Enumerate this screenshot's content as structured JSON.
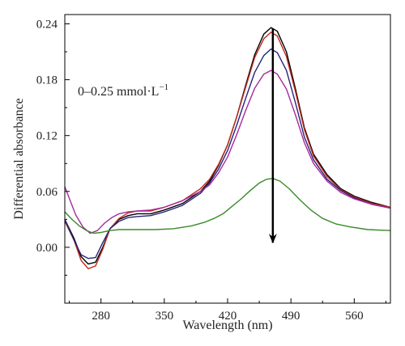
{
  "chart_data": {
    "type": "line",
    "title": "",
    "xlabel": "Wavelength (nm)",
    "ylabel": "Differential absorbance",
    "xlim": [
      240,
      600
    ],
    "ylim": [
      -0.06,
      0.25
    ],
    "x_ticks": [
      280,
      350,
      420,
      490,
      560
    ],
    "y_ticks": [
      0.0,
      0.06,
      0.12,
      0.18,
      0.24
    ],
    "x_tick_labels": [
      "280",
      "350",
      "420",
      "490",
      "560"
    ],
    "y_tick_labels": [
      "0.00",
      "0.06",
      "0.12",
      "0.18",
      "0.24"
    ],
    "grid": false,
    "legend": "none",
    "annotation": {
      "text": "0–0.25 mmol·L",
      "superscript": "−1",
      "position": "upper-left"
    },
    "arrow": {
      "x": 470,
      "y_start": 0.235,
      "y_end": 0.005,
      "direction": "down",
      "color": "#000000"
    },
    "series": [
      {
        "color": "#000000",
        "points": [
          [
            240,
            0.03
          ],
          [
            250,
            0.01
          ],
          [
            258,
            -0.01
          ],
          [
            266,
            -0.018
          ],
          [
            274,
            -0.016
          ],
          [
            282,
            0.0
          ],
          [
            290,
            0.02
          ],
          [
            300,
            0.03
          ],
          [
            310,
            0.034
          ],
          [
            320,
            0.036
          ],
          [
            335,
            0.036
          ],
          [
            350,
            0.04
          ],
          [
            370,
            0.047
          ],
          [
            390,
            0.06
          ],
          [
            400,
            0.071
          ],
          [
            410,
            0.088
          ],
          [
            420,
            0.11
          ],
          [
            430,
            0.14
          ],
          [
            440,
            0.174
          ],
          [
            450,
            0.207
          ],
          [
            460,
            0.229
          ],
          [
            468,
            0.236
          ],
          [
            475,
            0.232
          ],
          [
            485,
            0.21
          ],
          [
            495,
            0.17
          ],
          [
            505,
            0.128
          ],
          [
            515,
            0.1
          ],
          [
            530,
            0.078
          ],
          [
            545,
            0.063
          ],
          [
            560,
            0.055
          ],
          [
            580,
            0.048
          ],
          [
            600,
            0.043
          ]
        ]
      },
      {
        "color": "#c0281c",
        "points": [
          [
            240,
            0.028
          ],
          [
            250,
            0.008
          ],
          [
            258,
            -0.014
          ],
          [
            266,
            -0.023
          ],
          [
            274,
            -0.02
          ],
          [
            282,
            -0.002
          ],
          [
            290,
            0.02
          ],
          [
            300,
            0.031
          ],
          [
            310,
            0.037
          ],
          [
            320,
            0.039
          ],
          [
            335,
            0.039
          ],
          [
            350,
            0.043
          ],
          [
            370,
            0.05
          ],
          [
            390,
            0.063
          ],
          [
            400,
            0.073
          ],
          [
            410,
            0.089
          ],
          [
            420,
            0.11
          ],
          [
            430,
            0.14
          ],
          [
            440,
            0.172
          ],
          [
            450,
            0.204
          ],
          [
            460,
            0.224
          ],
          [
            468,
            0.231
          ],
          [
            475,
            0.227
          ],
          [
            485,
            0.205
          ],
          [
            495,
            0.167
          ],
          [
            505,
            0.126
          ],
          [
            515,
            0.098
          ],
          [
            530,
            0.076
          ],
          [
            545,
            0.062
          ],
          [
            560,
            0.054
          ],
          [
            580,
            0.047
          ],
          [
            600,
            0.043
          ]
        ]
      },
      {
        "color": "#25247a",
        "points": [
          [
            240,
            0.03
          ],
          [
            250,
            0.008
          ],
          [
            258,
            -0.008
          ],
          [
            266,
            -0.012
          ],
          [
            274,
            -0.011
          ],
          [
            282,
            0.005
          ],
          [
            290,
            0.02
          ],
          [
            300,
            0.028
          ],
          [
            310,
            0.032
          ],
          [
            320,
            0.033
          ],
          [
            335,
            0.034
          ],
          [
            350,
            0.038
          ],
          [
            370,
            0.045
          ],
          [
            390,
            0.058
          ],
          [
            400,
            0.069
          ],
          [
            410,
            0.084
          ],
          [
            420,
            0.104
          ],
          [
            430,
            0.131
          ],
          [
            440,
            0.16
          ],
          [
            450,
            0.188
          ],
          [
            460,
            0.206
          ],
          [
            468,
            0.213
          ],
          [
            475,
            0.209
          ],
          [
            485,
            0.19
          ],
          [
            495,
            0.155
          ],
          [
            505,
            0.118
          ],
          [
            515,
            0.094
          ],
          [
            530,
            0.073
          ],
          [
            545,
            0.061
          ],
          [
            560,
            0.053
          ],
          [
            580,
            0.046
          ],
          [
            600,
            0.042
          ]
        ]
      },
      {
        "color": "#a8289c",
        "points": [
          [
            240,
            0.065
          ],
          [
            246,
            0.05
          ],
          [
            252,
            0.035
          ],
          [
            260,
            0.022
          ],
          [
            268,
            0.015
          ],
          [
            276,
            0.018
          ],
          [
            284,
            0.026
          ],
          [
            292,
            0.032
          ],
          [
            300,
            0.036
          ],
          [
            310,
            0.038
          ],
          [
            320,
            0.039
          ],
          [
            335,
            0.04
          ],
          [
            350,
            0.043
          ],
          [
            370,
            0.05
          ],
          [
            390,
            0.06
          ],
          [
            400,
            0.067
          ],
          [
            410,
            0.08
          ],
          [
            420,
            0.097
          ],
          [
            430,
            0.121
          ],
          [
            440,
            0.147
          ],
          [
            450,
            0.171
          ],
          [
            460,
            0.186
          ],
          [
            468,
            0.19
          ],
          [
            475,
            0.186
          ],
          [
            485,
            0.17
          ],
          [
            495,
            0.142
          ],
          [
            505,
            0.112
          ],
          [
            515,
            0.09
          ],
          [
            530,
            0.071
          ],
          [
            545,
            0.059
          ],
          [
            560,
            0.052
          ],
          [
            580,
            0.046
          ],
          [
            600,
            0.042
          ]
        ]
      },
      {
        "color": "#3a8a2a",
        "points": [
          [
            240,
            0.038
          ],
          [
            248,
            0.03
          ],
          [
            256,
            0.023
          ],
          [
            264,
            0.018
          ],
          [
            272,
            0.015
          ],
          [
            280,
            0.016
          ],
          [
            290,
            0.018
          ],
          [
            300,
            0.019
          ],
          [
            320,
            0.019
          ],
          [
            340,
            0.019
          ],
          [
            360,
            0.02
          ],
          [
            380,
            0.023
          ],
          [
            395,
            0.027
          ],
          [
            405,
            0.031
          ],
          [
            415,
            0.036
          ],
          [
            425,
            0.044
          ],
          [
            435,
            0.052
          ],
          [
            445,
            0.061
          ],
          [
            455,
            0.069
          ],
          [
            463,
            0.073
          ],
          [
            470,
            0.074
          ],
          [
            478,
            0.071
          ],
          [
            488,
            0.063
          ],
          [
            500,
            0.051
          ],
          [
            512,
            0.04
          ],
          [
            525,
            0.031
          ],
          [
            540,
            0.025
          ],
          [
            555,
            0.022
          ],
          [
            575,
            0.019
          ],
          [
            600,
            0.018
          ]
        ]
      }
    ]
  }
}
